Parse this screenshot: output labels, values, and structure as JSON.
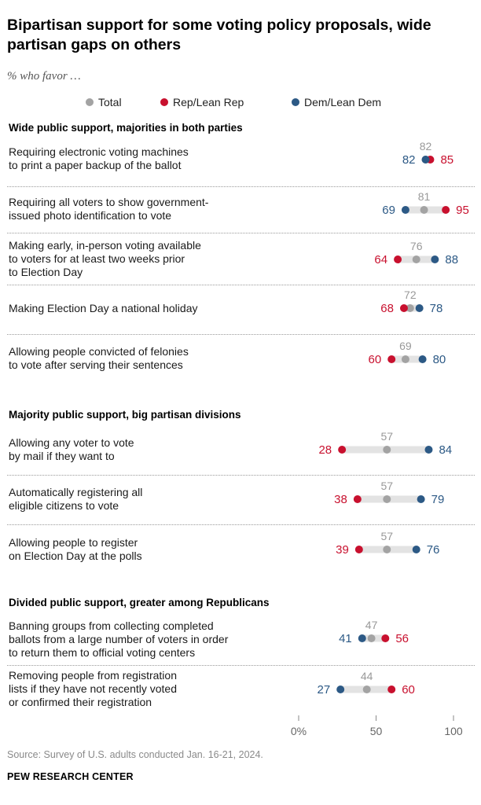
{
  "title": "Bipartisan support for some voting policy proposals, wide partisan gaps on others",
  "subtitle": "% who favor …",
  "legend": [
    {
      "label": "Total",
      "color": "#a3a3a3"
    },
    {
      "label": "Rep/Lean Rep",
      "color": "#c8102e"
    },
    {
      "label": "Dem/Lean Dem",
      "color": "#2c5985"
    }
  ],
  "sections": [
    "Wide public support, majorities in both parties",
    "Majority public support, big partisan divisions",
    "Divided public support, greater among Republicans"
  ],
  "source": "Source: Survey of U.S. adults conducted Jan. 16-21, 2024.",
  "brand": "PEW RESEARCH CENTER",
  "chart_data": {
    "type": "dot",
    "xlim": [
      0,
      100
    ],
    "ticks": [
      {
        "value": 0,
        "label": "0%"
      },
      {
        "value": 50,
        "label": "50"
      },
      {
        "value": 100,
        "label": "100"
      }
    ],
    "series_names": [
      "Total",
      "Rep/Lean Rep",
      "Dem/Lean Dem"
    ],
    "series_colors": {
      "total": "#a3a3a3",
      "rep": "#c8102e",
      "dem": "#2c5985"
    },
    "rows": [
      {
        "label": "Requiring electronic voting machines\nto print a paper backup of the ballot",
        "section": 0,
        "total": 82,
        "rep": 85,
        "dem": 82
      },
      {
        "label": "Requiring all voters to show government-\nissued photo identification to vote",
        "section": 0,
        "total": 81,
        "rep": 95,
        "dem": 69
      },
      {
        "label": "Making early, in-person voting available\nto voters for at least two weeks prior\nto Election Day",
        "section": 0,
        "total": 76,
        "rep": 64,
        "dem": 88
      },
      {
        "label": "Making Election Day a national holiday",
        "section": 0,
        "total": 72,
        "rep": 68,
        "dem": 78
      },
      {
        "label": "Allowing people convicted of felonies\nto vote after serving their sentences",
        "section": 0,
        "total": 69,
        "rep": 60,
        "dem": 80
      },
      {
        "label": "Allowing any voter to vote\nby mail if they want to",
        "section": 1,
        "total": 57,
        "rep": 28,
        "dem": 84
      },
      {
        "label": "Automatically registering all\neligible citizens to vote",
        "section": 1,
        "total": 57,
        "rep": 38,
        "dem": 79
      },
      {
        "label": "Allowing people to register\non Election Day at the polls",
        "section": 1,
        "total": 57,
        "rep": 39,
        "dem": 76
      },
      {
        "label": "Banning groups from collecting completed\nballots from a large number of voters in order\nto return them to official voting centers",
        "section": 2,
        "total": 47,
        "rep": 56,
        "dem": 41
      },
      {
        "label": "Removing people from registration\nlists if they have not recently voted\nor confirmed their registration",
        "section": 2,
        "total": 44,
        "rep": 60,
        "dem": 27
      }
    ]
  }
}
